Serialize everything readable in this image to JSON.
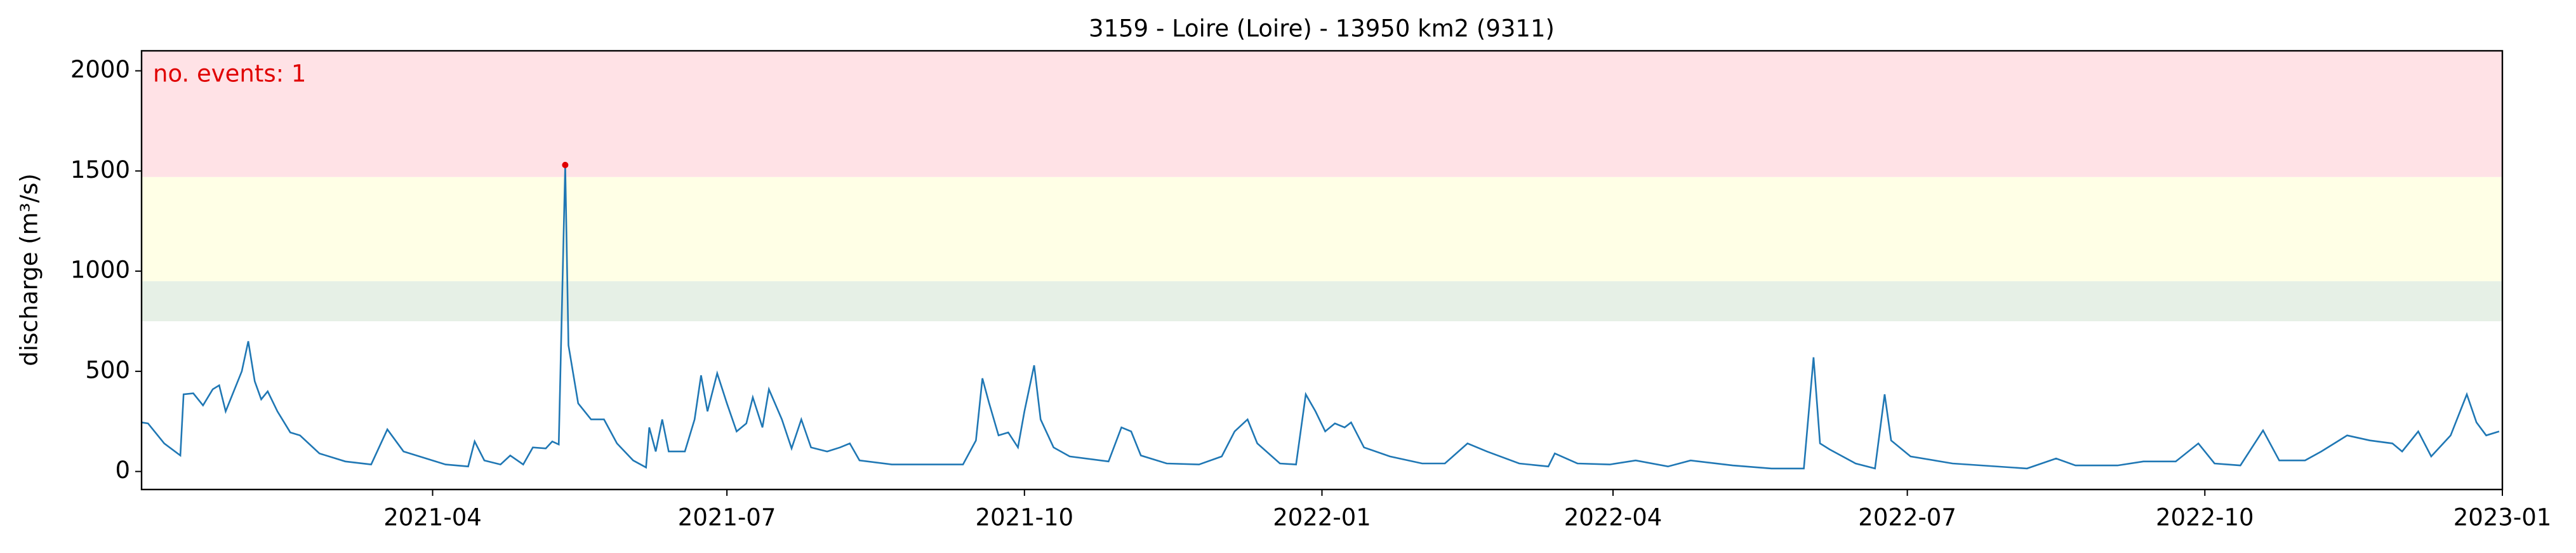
{
  "chart_data": {
    "type": "line",
    "title": "3159 - Loire (Loire) - 13950 km2 (9311)",
    "ylabel": "discharge (m³/s)",
    "annotation": "no. events: 1",
    "annotation_color": "#e00000",
    "xlim": [
      "2021-01-01",
      "2023-01-01"
    ],
    "ylim": [
      -90,
      2100
    ],
    "yticks": [
      0,
      500,
      1000,
      1500,
      2000
    ],
    "xticks": [
      {
        "value": "2021-04-01",
        "label": "2021-04"
      },
      {
        "value": "2021-07-01",
        "label": "2021-07"
      },
      {
        "value": "2021-10-01",
        "label": "2021-10"
      },
      {
        "value": "2022-01-01",
        "label": "2022-01"
      },
      {
        "value": "2022-04-01",
        "label": "2022-04"
      },
      {
        "value": "2022-07-01",
        "label": "2022-07"
      },
      {
        "value": "2022-10-01",
        "label": "2022-10"
      },
      {
        "value": "2023-01-01",
        "label": "2023-01"
      }
    ],
    "bands": [
      {
        "from": 750,
        "to": 950,
        "color": "#e6f0e6"
      },
      {
        "from": 950,
        "to": 1470,
        "color": "#ffffe6"
      },
      {
        "from": 1470,
        "to": 2100,
        "color": "#ffe2e6"
      }
    ],
    "x": [
      "2021-01-01",
      "2021-01-03",
      "2021-01-08",
      "2021-01-13",
      "2021-01-14",
      "2021-01-17",
      "2021-01-20",
      "2021-01-23",
      "2021-01-25",
      "2021-01-27",
      "2021-02-01",
      "2021-02-03",
      "2021-02-05",
      "2021-02-07",
      "2021-02-09",
      "2021-02-12",
      "2021-02-16",
      "2021-02-19",
      "2021-02-25",
      "2021-03-05",
      "2021-03-13",
      "2021-03-18",
      "2021-03-23",
      "2021-03-30",
      "2021-04-05",
      "2021-04-12",
      "2021-04-14",
      "2021-04-17",
      "2021-04-22",
      "2021-04-25",
      "2021-04-29",
      "2021-05-02",
      "2021-05-06",
      "2021-05-08",
      "2021-05-10",
      "2021-05-12",
      "2021-05-13",
      "2021-05-16",
      "2021-05-20",
      "2021-05-24",
      "2021-05-28",
      "2021-06-02",
      "2021-06-06",
      "2021-06-07",
      "2021-06-09",
      "2021-06-11",
      "2021-06-13",
      "2021-06-18",
      "2021-06-21",
      "2021-06-23",
      "2021-06-25",
      "2021-06-28",
      "2021-07-01",
      "2021-07-04",
      "2021-07-07",
      "2021-07-09",
      "2021-07-12",
      "2021-07-14",
      "2021-07-18",
      "2021-07-21",
      "2021-07-24",
      "2021-07-27",
      "2021-08-01",
      "2021-08-05",
      "2021-08-08",
      "2021-08-11",
      "2021-08-21",
      "2021-09-12",
      "2021-09-16",
      "2021-09-18",
      "2021-09-20",
      "2021-09-23",
      "2021-09-26",
      "2021-09-29",
      "2021-10-01",
      "2021-10-04",
      "2021-10-06",
      "2021-10-10",
      "2021-10-15",
      "2021-10-27",
      "2021-10-31",
      "2021-11-03",
      "2021-11-06",
      "2021-11-14",
      "2021-11-24",
      "2021-12-01",
      "2021-12-05",
      "2021-12-09",
      "2021-12-12",
      "2021-12-19",
      "2021-12-24",
      "2021-12-27",
      "2021-12-30",
      "2022-01-02",
      "2022-01-05",
      "2022-01-08",
      "2022-01-10",
      "2022-01-14",
      "2022-01-22",
      "2022-02-01",
      "2022-02-08",
      "2022-02-15",
      "2022-02-21",
      "2022-03-03",
      "2022-03-12",
      "2022-03-14",
      "2022-03-21",
      "2022-03-31",
      "2022-04-08",
      "2022-04-18",
      "2022-04-25",
      "2022-05-08",
      "2022-05-20",
      "2022-05-30",
      "2022-06-02",
      "2022-06-04",
      "2022-06-07",
      "2022-06-15",
      "2022-06-21",
      "2022-06-24",
      "2022-06-26",
      "2022-07-02",
      "2022-07-15",
      "2022-08-07",
      "2022-08-16",
      "2022-08-22",
      "2022-09-04",
      "2022-09-12",
      "2022-09-22",
      "2022-09-29",
      "2022-10-04",
      "2022-10-12",
      "2022-10-19",
      "2022-10-24",
      "2022-11-01",
      "2022-11-06",
      "2022-11-14",
      "2022-11-21",
      "2022-11-28",
      "2022-12-01",
      "2022-12-06",
      "2022-12-10",
      "2022-12-16",
      "2022-12-21",
      "2022-12-24",
      "2022-12-27",
      "2022-12-31"
    ],
    "series": [
      {
        "name": "discharge",
        "color": "#1f77b4",
        "values": [
          245,
          240,
          140,
          80,
          385,
          390,
          330,
          410,
          430,
          300,
          500,
          650,
          450,
          360,
          400,
          300,
          195,
          180,
          90,
          50,
          35,
          210,
          100,
          65,
          35,
          25,
          150,
          55,
          35,
          80,
          35,
          120,
          115,
          150,
          135,
          1530,
          630,
          340,
          260,
          260,
          140,
          55,
          20,
          220,
          100,
          260,
          100,
          100,
          260,
          480,
          300,
          490,
          340,
          200,
          240,
          370,
          220,
          410,
          260,
          115,
          260,
          120,
          100,
          120,
          140,
          55,
          35,
          35,
          155,
          465,
          345,
          180,
          195,
          120,
          300,
          530,
          260,
          120,
          75,
          50,
          220,
          200,
          80,
          40,
          35,
          75,
          200,
          260,
          140,
          40,
          35,
          385,
          300,
          200,
          240,
          220,
          245,
          120,
          75,
          40,
          40,
          140,
          100,
          40,
          25,
          90,
          40,
          35,
          55,
          25,
          55,
          30,
          15,
          15,
          570,
          140,
          110,
          40,
          15,
          385,
          155,
          75,
          40,
          15,
          65,
          30,
          30,
          50,
          50,
          140,
          40,
          30,
          205,
          55,
          55,
          100,
          180,
          155,
          140,
          100,
          200,
          75,
          180,
          385,
          245,
          180,
          200
        ]
      }
    ],
    "events": {
      "color": "#e00000",
      "x": [
        "2021-05-12"
      ],
      "values": [
        1530
      ]
    }
  }
}
